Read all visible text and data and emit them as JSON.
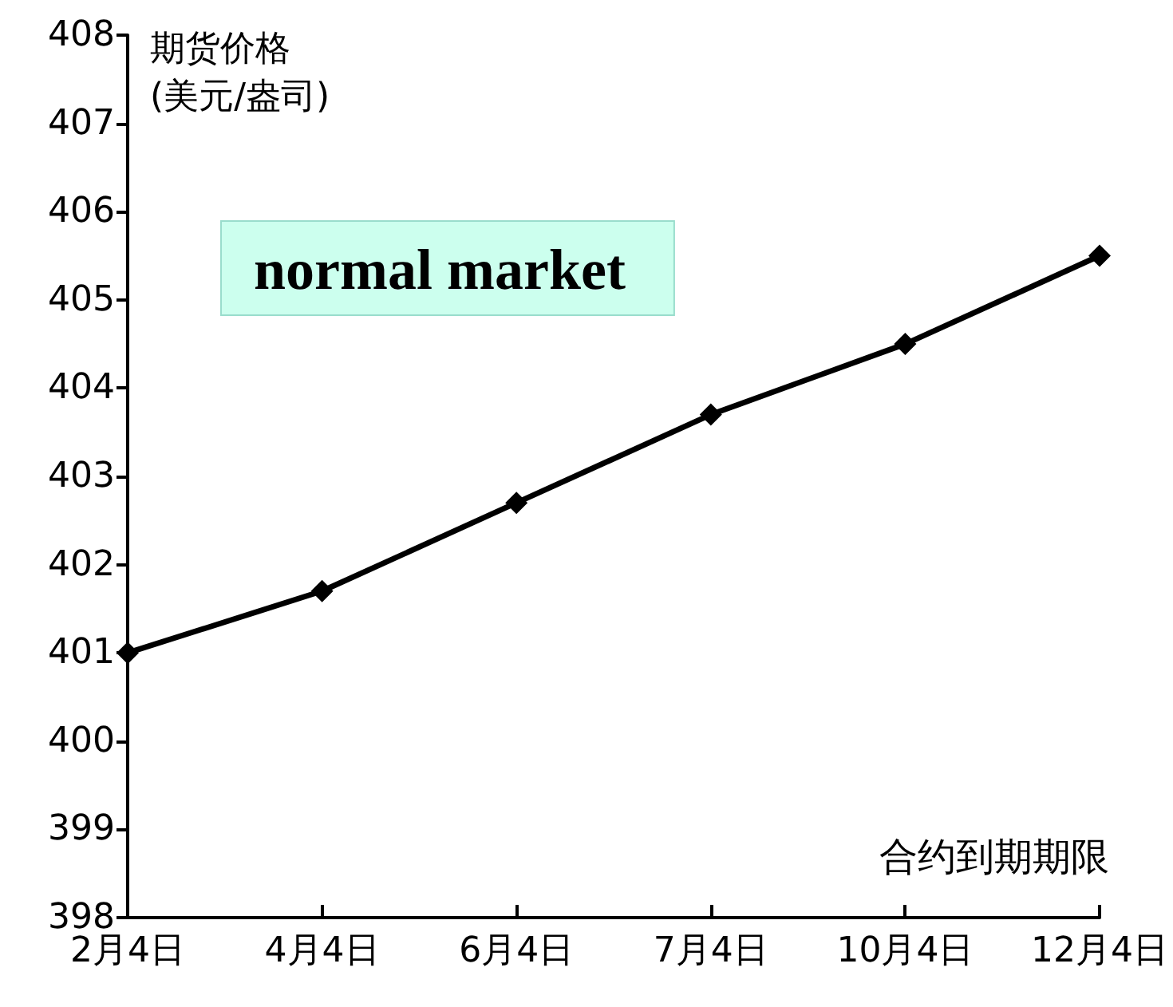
{
  "chart_data": {
    "type": "line",
    "ylabel": "期货价格\n(美元/盎司)",
    "xlabel": "合约到期期限",
    "annotations": [
      "normal market"
    ],
    "categories": [
      "2月4日",
      "4月4日",
      "6月4日",
      "7月4日",
      "10月4日",
      "12月4日"
    ],
    "series": [
      {
        "color": "#000000",
        "values": [
          401.0,
          401.7,
          402.7,
          403.7,
          404.5,
          405.5
        ]
      }
    ],
    "ylim": [
      398,
      408
    ],
    "yticks": [
      398,
      399,
      400,
      401,
      402,
      403,
      404,
      405,
      406,
      407,
      408
    ],
    "grid": false,
    "marker": "diamond",
    "line_style": "solid"
  }
}
